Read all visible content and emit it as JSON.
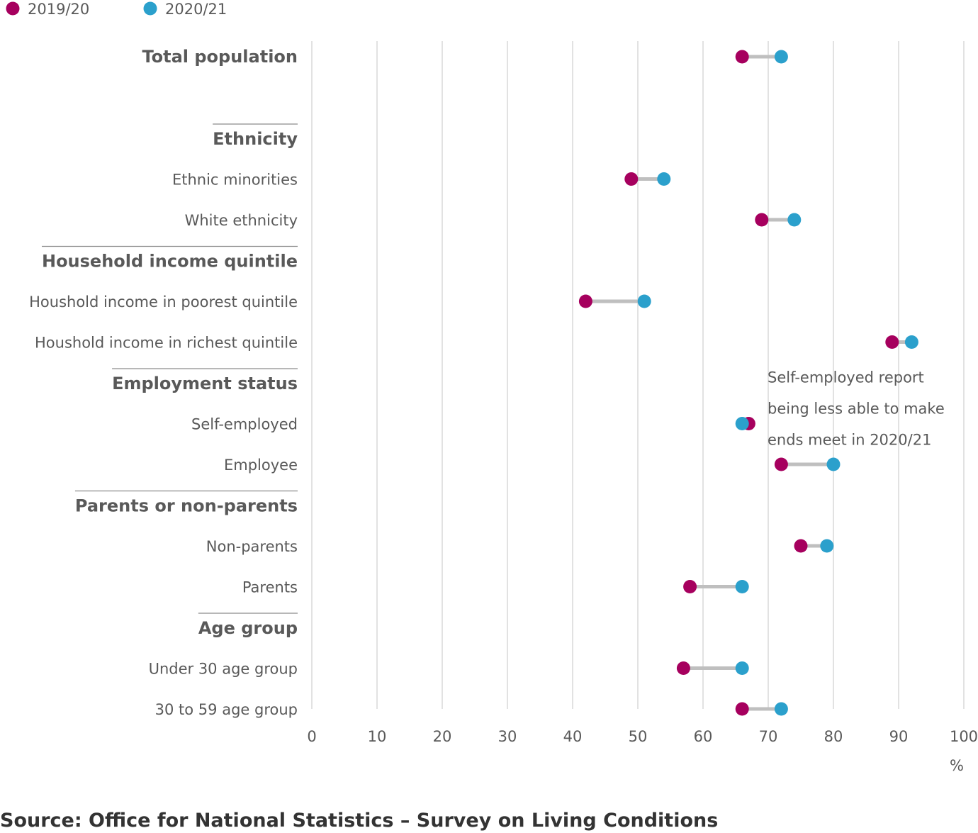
{
  "chart_data": {
    "type": "dot-plot",
    "xlim": [
      0,
      100
    ],
    "x_ticks": [
      0,
      10,
      20,
      30,
      40,
      50,
      60,
      70,
      80,
      90,
      100
    ],
    "x_unit": "%",
    "grid": true,
    "legend_position": "top-left",
    "series": [
      {
        "name": "2019/20",
        "color": "#A6005E"
      },
      {
        "name": "2020/21",
        "color": "#2BA0CC"
      }
    ],
    "connector_color": "#BFBFBF",
    "rows": [
      {
        "kind": "row",
        "label": "Total population",
        "bold": true,
        "values": [
          66,
          72
        ]
      },
      {
        "kind": "spacer"
      },
      {
        "kind": "group",
        "label": "Ethnicity"
      },
      {
        "kind": "row",
        "label": "Ethnic minorities",
        "values": [
          49,
          54
        ]
      },
      {
        "kind": "row",
        "label": "White ethnicity",
        "values": [
          69,
          74
        ]
      },
      {
        "kind": "group",
        "label": "Household income quintile"
      },
      {
        "kind": "row",
        "label": "Houshold income in poorest quintile",
        "values": [
          42,
          51
        ]
      },
      {
        "kind": "row",
        "label": "Houshold income in richest quintile",
        "values": [
          89,
          92
        ]
      },
      {
        "kind": "group",
        "label": "Employment status"
      },
      {
        "kind": "row",
        "label": "Self-employed",
        "values": [
          67,
          66
        ]
      },
      {
        "kind": "row",
        "label": "Employee",
        "values": [
          72,
          80
        ]
      },
      {
        "kind": "group",
        "label": "Parents or non-parents"
      },
      {
        "kind": "row",
        "label": "Non-parents",
        "values": [
          75,
          79
        ]
      },
      {
        "kind": "row",
        "label": "Parents",
        "values": [
          58,
          66
        ]
      },
      {
        "kind": "group",
        "label": "Age group"
      },
      {
        "kind": "row",
        "label": "Under 30 age group",
        "values": [
          57,
          66
        ]
      },
      {
        "kind": "row",
        "label": "30 to 59 age group",
        "values": [
          66,
          72
        ]
      }
    ],
    "annotation": {
      "lines": [
        "Self-employed report",
        "being less able to make",
        "ends meet in 2020/21"
      ],
      "near_row": "Self-employed"
    }
  },
  "source": "Source: Office for National Statistics – Survey on Living Conditions"
}
